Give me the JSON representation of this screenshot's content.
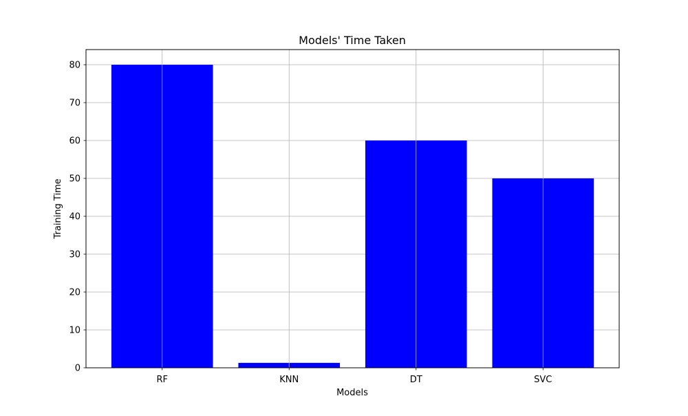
{
  "chart_data": {
    "type": "bar",
    "title": "Models' Time Taken",
    "xlabel": "Models",
    "ylabel": "Training Time",
    "categories": [
      "RF",
      "KNN",
      "DT",
      "SVC"
    ],
    "values": [
      80,
      1.3,
      60,
      50
    ],
    "ylim": [
      0,
      84
    ],
    "yticks": [
      0,
      10,
      20,
      30,
      40,
      50,
      60,
      70,
      80
    ],
    "grid": true,
    "bar_color": "#0000ff"
  }
}
